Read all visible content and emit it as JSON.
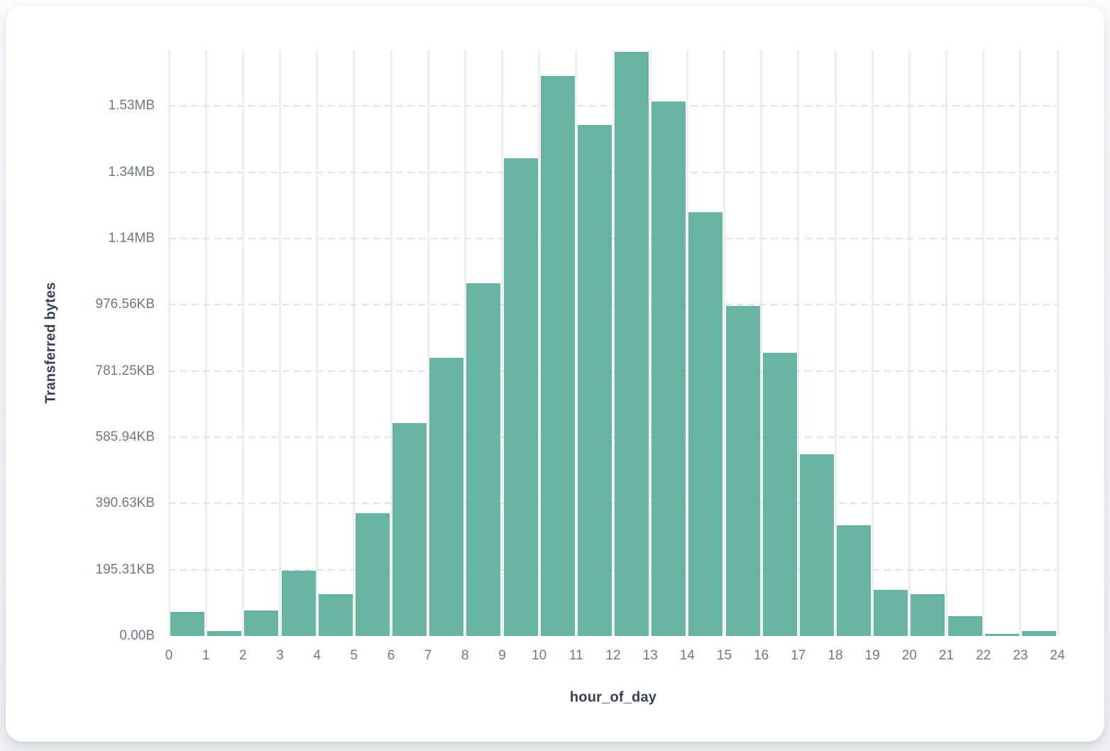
{
  "page": {
    "background_top": "#fafbfd",
    "background_bottom": "#eef0f3",
    "card_background": "#ffffff"
  },
  "chart_data": {
    "type": "bar",
    "subtype": "histogram",
    "title": "",
    "xlabel": "hour_of_day",
    "ylabel": "Transferred bytes",
    "bar_color": "#69b3a2",
    "grid": true,
    "legend": "none",
    "xlim": [
      0,
      24
    ],
    "ylim_bytes": [
      0,
      1770000
    ],
    "categories": [
      0,
      1,
      2,
      3,
      4,
      5,
      6,
      7,
      8,
      9,
      10,
      11,
      12,
      13,
      14,
      15,
      16,
      17,
      18,
      19,
      20,
      21,
      22,
      23
    ],
    "values_bytes": [
      73000,
      15000,
      77000,
      197000,
      126000,
      370000,
      644000,
      841000,
      1065000,
      1442000,
      1690000,
      1542000,
      1763000,
      1613000,
      1279000,
      997000,
      856000,
      548000,
      334000,
      139000,
      126000,
      60000,
      6500,
      15000
    ],
    "x_tick_labels": [
      "0",
      "1",
      "2",
      "3",
      "4",
      "5",
      "6",
      "7",
      "8",
      "9",
      "10",
      "11",
      "12",
      "13",
      "14",
      "15",
      "16",
      "17",
      "18",
      "19",
      "20",
      "21",
      "22",
      "23",
      "24"
    ],
    "y_ticks": [
      {
        "label": "0.00B",
        "bytes": 0
      },
      {
        "label": "195.31KB",
        "bytes": 200000
      },
      {
        "label": "390.63KB",
        "bytes": 400000
      },
      {
        "label": "585.94KB",
        "bytes": 600000
      },
      {
        "label": "781.25KB",
        "bytes": 800000
      },
      {
        "label": "976.56KB",
        "bytes": 1000000
      },
      {
        "label": "1.14MB",
        "bytes": 1200000
      },
      {
        "label": "1.34MB",
        "bytes": 1400000
      },
      {
        "label": "1.53MB",
        "bytes": 1600000
      }
    ]
  }
}
